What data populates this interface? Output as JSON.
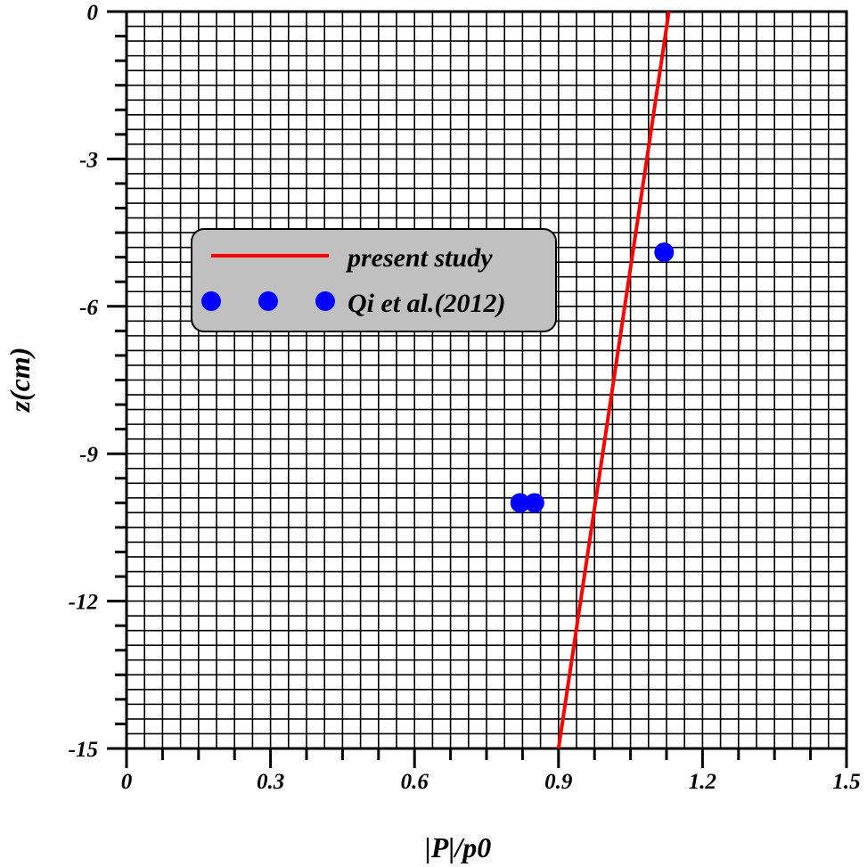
{
  "chart_data": {
    "type": "scatter",
    "xlabel": "|P|/p0",
    "ylabel": "z(cm)",
    "xlim": [
      0,
      1.5
    ],
    "ylim": [
      -15,
      0
    ],
    "x_ticks": [
      0,
      0.3,
      0.6,
      0.9,
      1.2,
      1.5
    ],
    "x_tick_labels": [
      "0",
      "0.3",
      "0.6",
      "0.9",
      "1.2",
      "1.5"
    ],
    "y_ticks": [
      0,
      -3,
      -6,
      -9,
      -12,
      -15
    ],
    "y_tick_labels": [
      "0",
      "-3",
      "-6",
      "-9",
      "-12",
      "-15"
    ],
    "grid": true,
    "legend_position": "upper-left",
    "series": [
      {
        "name": "present study",
        "mode": "line",
        "color": "#ff0000",
        "x": [
          0.9,
          1.13
        ],
        "y": [
          -15,
          0
        ]
      },
      {
        "name": "Qi et al.(2012)",
        "mode": "markers",
        "color": "#0000ff",
        "x": [
          1.12,
          0.82,
          0.85
        ],
        "y": [
          -4.9,
          -10,
          -10
        ]
      }
    ]
  }
}
